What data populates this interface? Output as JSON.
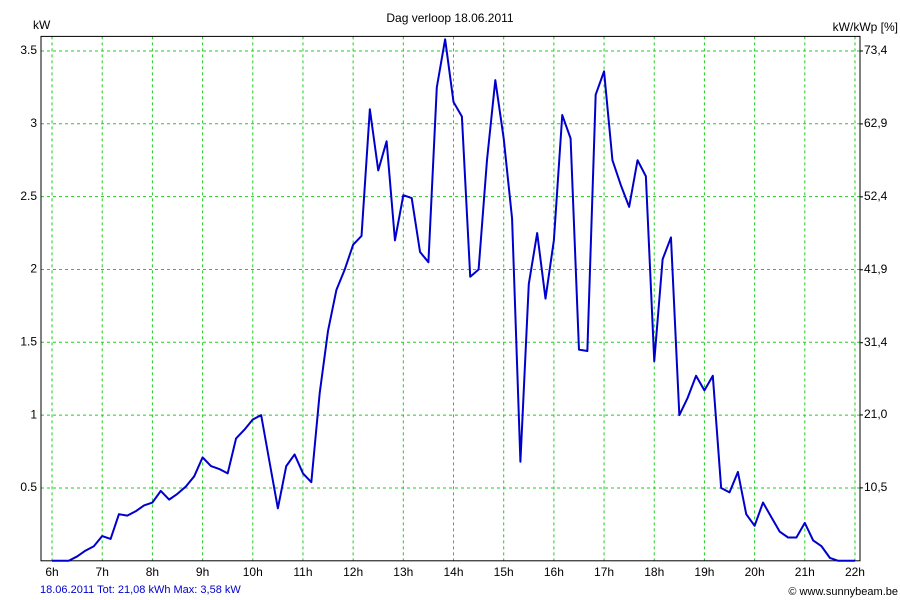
{
  "chart_data": {
    "type": "line",
    "title": "Dag  verloop 18.06.2011",
    "y_label": "kW",
    "y2_label": "kW/kWp [%]",
    "footer_left": "18.06.2011 Tot: 21,08 kWh Max: 3,58 kW",
    "footer_right": "© www.sunnybeam.be",
    "xlim": [
      5.78,
      22.1
    ],
    "xticks": [
      {
        "value": 6,
        "label": "6h"
      },
      {
        "value": 7,
        "label": "7h"
      },
      {
        "value": 8,
        "label": "8h"
      },
      {
        "value": 9,
        "label": "9h"
      },
      {
        "value": 10,
        "label": "10h"
      },
      {
        "value": 11,
        "label": "11h"
      },
      {
        "value": 12,
        "label": "12h"
      },
      {
        "value": 13,
        "label": "13h"
      },
      {
        "value": 14,
        "label": "14h"
      },
      {
        "value": 15,
        "label": "15h"
      },
      {
        "value": 16,
        "label": "16h"
      },
      {
        "value": 17,
        "label": "17h"
      },
      {
        "value": 18,
        "label": "18h"
      },
      {
        "value": 19,
        "label": "19h"
      },
      {
        "value": 20,
        "label": "20h"
      },
      {
        "value": 21,
        "label": "21h"
      },
      {
        "value": 22,
        "label": "22h"
      }
    ],
    "ylim": [
      0,
      3.6
    ],
    "yticks": [
      0.5,
      1,
      1.5,
      2,
      2.5,
      3,
      3.5
    ],
    "y2lim": [
      0,
      75.5
    ],
    "y2ticks": [
      {
        "value": 10.5,
        "label": "10,5"
      },
      {
        "value": 21.0,
        "label": "21,0"
      },
      {
        "value": 31.4,
        "label": "31,4"
      },
      {
        "value": 41.9,
        "label": "41,9"
      },
      {
        "value": 52.4,
        "label": "52,4"
      },
      {
        "value": 62.9,
        "label": "62,9"
      },
      {
        "value": 73.4,
        "label": "73,4"
      }
    ],
    "grid": true,
    "x": [
      6,
      6.167,
      6.333,
      6.5,
      6.667,
      6.833,
      7,
      7.167,
      7.333,
      7.5,
      7.667,
      7.833,
      8,
      8.167,
      8.333,
      8.5,
      8.667,
      8.833,
      9,
      9.167,
      9.333,
      9.5,
      9.667,
      9.833,
      10,
      10.167,
      10.333,
      10.5,
      10.667,
      10.833,
      11,
      11.167,
      11.333,
      11.5,
      11.667,
      11.833,
      12,
      12.167,
      12.333,
      12.5,
      12.667,
      12.833,
      13,
      13.167,
      13.333,
      13.5,
      13.667,
      13.833,
      14,
      14.167,
      14.333,
      14.5,
      14.667,
      14.833,
      15,
      15.167,
      15.333,
      15.5,
      15.667,
      15.833,
      16,
      16.167,
      16.333,
      16.5,
      16.667,
      16.833,
      17,
      17.167,
      17.333,
      17.5,
      17.667,
      17.833,
      18,
      18.167,
      18.333,
      18.5,
      18.667,
      18.833,
      19,
      19.167,
      19.333,
      19.5,
      19.667,
      19.833,
      20,
      20.167,
      20.333,
      20.5,
      20.667,
      20.833,
      21,
      21.167,
      21.333,
      21.5,
      21.667,
      21.833,
      22
    ],
    "series": [
      {
        "name": "kW",
        "color": "#0000cc",
        "values": [
          0,
          0,
          0,
          0.03,
          0.07,
          0.1,
          0.17,
          0.15,
          0.32,
          0.31,
          0.34,
          0.38,
          0.4,
          0.48,
          0.42,
          0.46,
          0.51,
          0.58,
          0.71,
          0.65,
          0.63,
          0.6,
          0.84,
          0.9,
          0.97,
          1.0,
          0.68,
          0.36,
          0.65,
          0.73,
          0.6,
          0.54,
          1.15,
          1.58,
          1.86,
          2.0,
          2.17,
          2.23,
          3.1,
          2.68,
          2.88,
          2.2,
          2.51,
          2.49,
          2.12,
          2.05,
          3.25,
          3.58,
          3.15,
          3.05,
          1.95,
          2.0,
          2.75,
          3.3,
          2.9,
          2.35,
          0.68,
          1.9,
          2.25,
          1.8,
          2.2,
          3.06,
          2.9,
          1.45,
          1.44,
          3.2,
          3.36,
          2.75,
          2.58,
          2.43,
          2.75,
          2.64,
          1.37,
          2.07,
          2.22,
          1.0,
          1.12,
          1.27,
          1.17,
          1.27,
          0.5,
          0.47,
          0.61,
          0.32,
          0.24,
          0.4,
          0.3,
          0.2,
          0.16,
          0.16,
          0.26,
          0.14,
          0.1,
          0.02,
          0,
          0,
          0
        ]
      }
    ]
  }
}
